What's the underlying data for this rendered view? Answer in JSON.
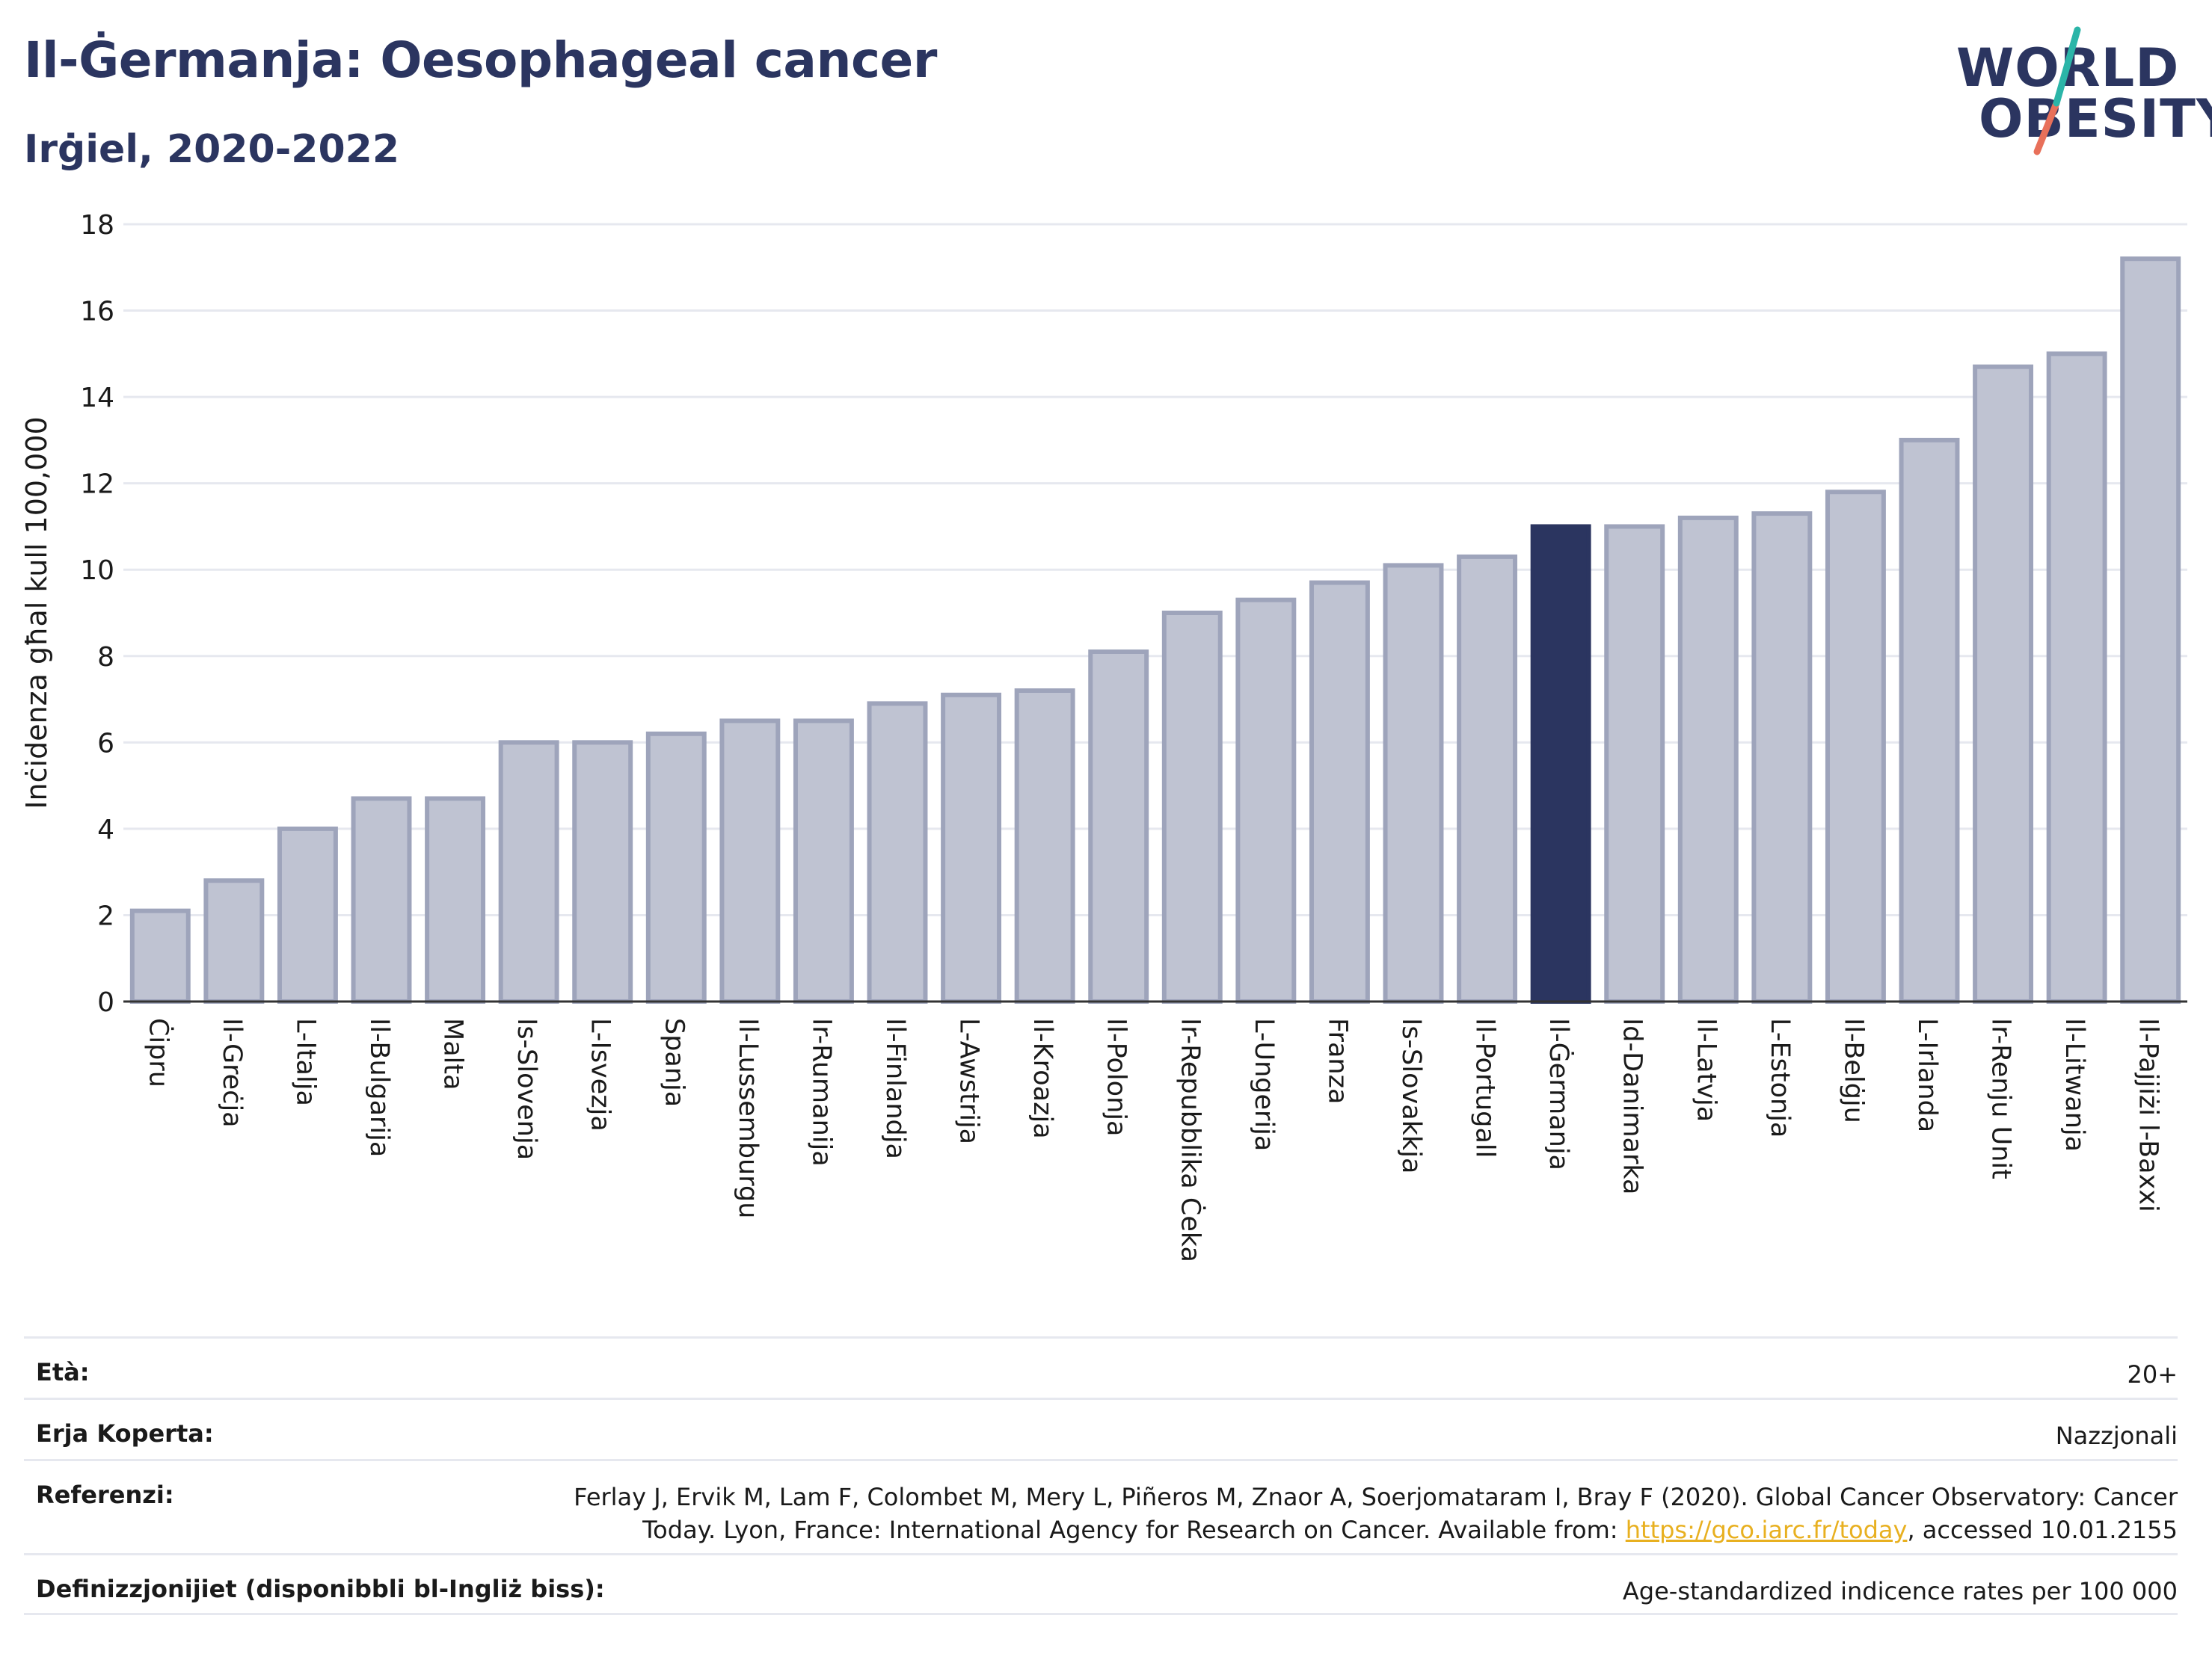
{
  "header": {
    "title": "Il-Ġermanja: Oesophageal cancer",
    "subtitle": "Irġiel, 2020-2022"
  },
  "logo": {
    "line1": "WORLD",
    "line2": "OBESITY",
    "accent_colors": [
      "#2bb5a8",
      "#e8705a"
    ]
  },
  "colors": {
    "highlight": "#2b3560",
    "bar": "#bfc3d2",
    "bar_edge": "#9ea4bb",
    "grid": "#e6e8ef",
    "axis": "#333333"
  },
  "chart_data": {
    "type": "bar",
    "ylabel": "Inċidenza għal kull 100,000",
    "ylim": [
      0,
      18
    ],
    "yticks": [
      0,
      2,
      4,
      6,
      8,
      10,
      12,
      14,
      16,
      18
    ],
    "highlight": "Il-Ġermanja",
    "grid": true,
    "categories": [
      "Ċipru",
      "Il-Greċja",
      "L-Italja",
      "Il-Bulgarija",
      "Malta",
      "Is-Slovenja",
      "L-Isvezja",
      "Spanja",
      "Il-Lussemburgu",
      "Ir-Rumanija",
      "Il-Finlandja",
      "L-Awstrija",
      "Il-Kroazja",
      "Il-Polonja",
      "Ir-Repubblika Ċeka",
      "L-Ungerija",
      "Franza",
      "Is-Slovakkja",
      "Il-Portugall",
      "Il-Ġermanja",
      "Id-Danimarka",
      "Il-Latvja",
      "L-Estonja",
      "Il-Belġju",
      "L-Irlanda",
      "Ir-Renju Unit",
      "Il-Litwanja",
      "Il-Pajjiżi l-Baxxi"
    ],
    "values": [
      2.1,
      2.8,
      4.0,
      4.7,
      4.7,
      6.0,
      6.0,
      6.2,
      6.5,
      6.5,
      6.9,
      7.1,
      7.2,
      8.1,
      9.0,
      9.3,
      9.7,
      10.1,
      10.3,
      11.0,
      11.0,
      11.2,
      11.3,
      11.8,
      13.0,
      14.7,
      15.0,
      17.2
    ]
  },
  "meta": {
    "age_label": "Età:",
    "age_value": "20+",
    "area_label": "Erja Koperta:",
    "area_value": "Nazzjonali",
    "ref_label": "Referenzi:",
    "ref_line1": "Ferlay J, Ervik M, Lam F, Colombet M, Mery L, Piñeros M, Znaor A, Soerjomataram I, Bray F (2020). Global Cancer Observatory: Cancer",
    "ref_line2_pre": "Today. Lyon, France: International Agency for Research on Cancer. Available from: ",
    "ref_link": "https://gco.iarc.fr/today",
    "ref_line2_post": ", accessed 10.01.2155",
    "def_label": "Definizzjonijiet (disponibbli bl-Ingliż biss):",
    "def_value": "Age-standardized indicence rates per 100 000"
  }
}
